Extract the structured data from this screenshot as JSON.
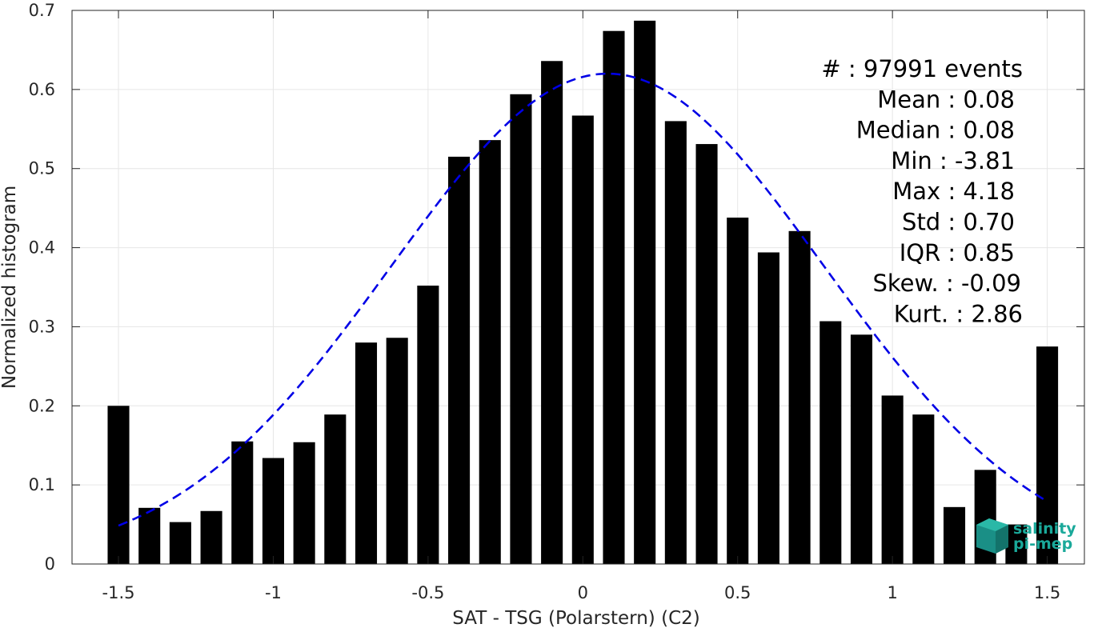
{
  "chart_data": {
    "type": "bar",
    "xlabel": "SAT - TSG (Polarstern) (C2)",
    "ylabel": "Normalized histogram",
    "xlim": [
      -1.65,
      1.62
    ],
    "ylim": [
      0,
      0.7
    ],
    "x_ticks": [
      -1.5,
      -1,
      -0.5,
      0,
      0.5,
      1,
      1.5
    ],
    "x_tick_labels": [
      "-1.5",
      "-1",
      "-0.5",
      "0",
      "0.5",
      "1",
      "1.5"
    ],
    "y_ticks": [
      0,
      0.1,
      0.2,
      0.3,
      0.4,
      0.5,
      0.6,
      0.7
    ],
    "y_tick_labels": [
      "0",
      "0.1",
      "0.2",
      "0.3",
      "0.4",
      "0.5",
      "0.6",
      "0.7"
    ],
    "grid": true,
    "bar_width": 0.07,
    "bar_color": "#000000",
    "x": [
      -1.5,
      -1.4,
      -1.3,
      -1.2,
      -1.1,
      -1.0,
      -0.9,
      -0.8,
      -0.7,
      -0.6,
      -0.5,
      -0.4,
      -0.3,
      -0.2,
      -0.1,
      0.0,
      0.1,
      0.2,
      0.3,
      0.4,
      0.5,
      0.6,
      0.7,
      0.8,
      0.9,
      1.0,
      1.1,
      1.2,
      1.3,
      1.4,
      1.5
    ],
    "values": [
      0.2,
      0.071,
      0.053,
      0.067,
      0.155,
      0.134,
      0.154,
      0.189,
      0.28,
      0.286,
      0.352,
      0.515,
      0.536,
      0.594,
      0.636,
      0.567,
      0.674,
      0.687,
      0.56,
      0.531,
      0.438,
      0.394,
      0.421,
      0.307,
      0.29,
      0.213,
      0.189,
      0.072,
      0.119,
      0.05,
      0.275
    ],
    "fit": {
      "type": "gaussian",
      "style": "dashed",
      "color": "#0000e6",
      "mean": 0.08,
      "std": 0.7,
      "peak": 0.62,
      "x_range": [
        -1.5,
        1.5
      ]
    },
    "stats": [
      "#  : 97991 events",
      "Mean : 0.08",
      "Median : 0.08",
      "Min : -3.81",
      "Max : 4.18",
      "Std : 0.70",
      "IQR : 0.85",
      "Skew. : -0.09",
      "Kurt. : 2.86"
    ]
  },
  "logo": {
    "line1": "salinity",
    "line2": "pi-mep",
    "color": "#1aa99a"
  }
}
